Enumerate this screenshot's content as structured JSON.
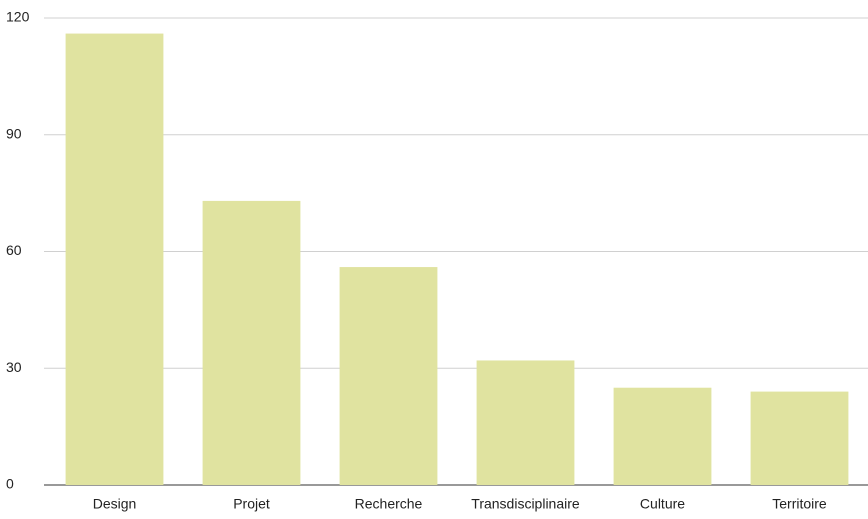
{
  "chart_data": {
    "type": "bar",
    "categories": [
      "Design",
      "Projet",
      "Recherche",
      "Transdisciplinaire",
      "Culture",
      "Territoire"
    ],
    "values": [
      116,
      73,
      56,
      32,
      25,
      24
    ],
    "color": "#e0e3a0",
    "ylim": [
      0,
      120
    ],
    "yticks": [
      0,
      30,
      60,
      90,
      120
    ],
    "grid": true
  }
}
